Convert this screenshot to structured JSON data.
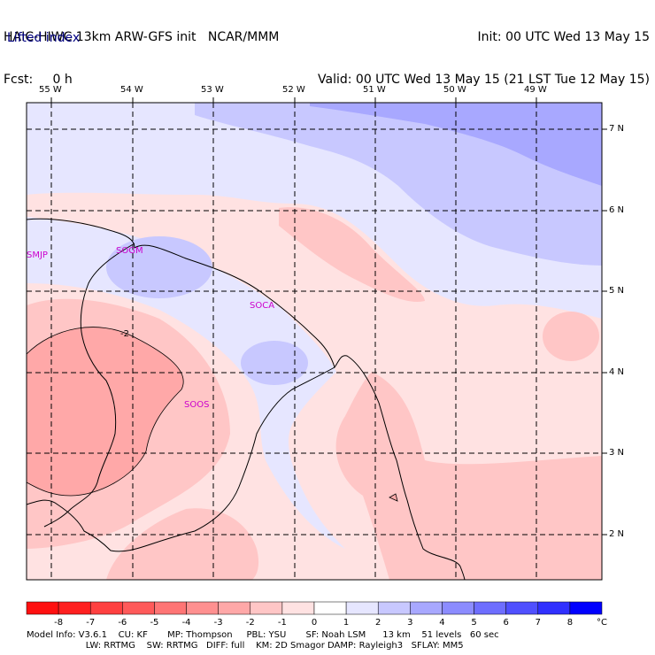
{
  "header": {
    "line1_left": "HAIC-HIWC 13km ARW-GFS init   NCAR/MMM",
    "line2_left": "Fcst:     0 h",
    "line1_right": "Init: 00 UTC Wed 13 May 15",
    "line2_right": "Valid: 00 UTC Wed 13 May 15 (21 LST Tue 12 May 15)",
    "field_name": "Lifted index"
  },
  "map": {
    "lon_labels": [
      "55 W",
      "54 W",
      "53 W",
      "52 W",
      "51 W",
      "50 W",
      "49 W"
    ],
    "lat_labels": [
      "7 N",
      "6 N",
      "5 N",
      "4 N",
      "3 N",
      "2 N"
    ],
    "stations": [
      "SMJP",
      "SOGM",
      "SOCA",
      "SOOS"
    ],
    "contour_label": "-2"
  },
  "colorbar": {
    "values": [
      "-8",
      "-7",
      "-6",
      "-5",
      "-4",
      "-3",
      "-2",
      "-1",
      "0",
      "1",
      "2",
      "3",
      "4",
      "5",
      "6",
      "7",
      "8"
    ],
    "unit": "°C",
    "colors": [
      "#ff2020",
      "#ff4040",
      "#ff5a5a",
      "#ff7575",
      "#ff9090",
      "#ffa8a8",
      "#ffc6c6",
      "#ffe2e2",
      "#ffffff",
      "#e6e6ff",
      "#c8c8ff",
      "#a8a8ff",
      "#8c8cff",
      "#6e6eff",
      "#5050ff",
      "#3030ff",
      "#1010ff"
    ]
  },
  "footer": {
    "line1": "Model Info: V3.6.1    CU: KF       MP: Thompson     PBL: YSU       SF: Noah LSM      13 km    51 levels   60 sec",
    "line2": "                     LW: RRTMG    SW: RRTMG   DIFF: full    KM: 2D Smagor DAMP: Rayleigh3   SFLAY: MM5"
  }
}
